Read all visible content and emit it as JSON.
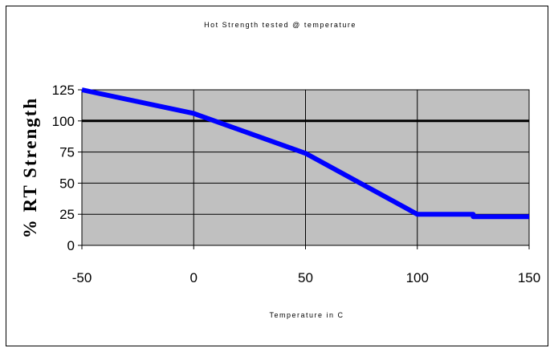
{
  "chart_data": {
    "type": "line",
    "title": "Hot Strength tested @ temperature",
    "xlabel": "Temperature in C",
    "ylabel": "% RT Strength",
    "xlim": [
      -50,
      150
    ],
    "ylim": [
      0,
      125
    ],
    "x_ticks": [
      -50,
      0,
      50,
      100,
      150
    ],
    "y_ticks": [
      0,
      25,
      50,
      75,
      100,
      125
    ],
    "grid": true,
    "legend": "none",
    "reference_line": 100,
    "series": [
      {
        "x": [
          -50,
          0,
          50,
          100,
          125,
          125,
          150
        ],
        "values": [
          125,
          106,
          74,
          25,
          25,
          23,
          23
        ],
        "color": "#0000ff"
      }
    ],
    "plot_background": "#c0c0c0"
  }
}
